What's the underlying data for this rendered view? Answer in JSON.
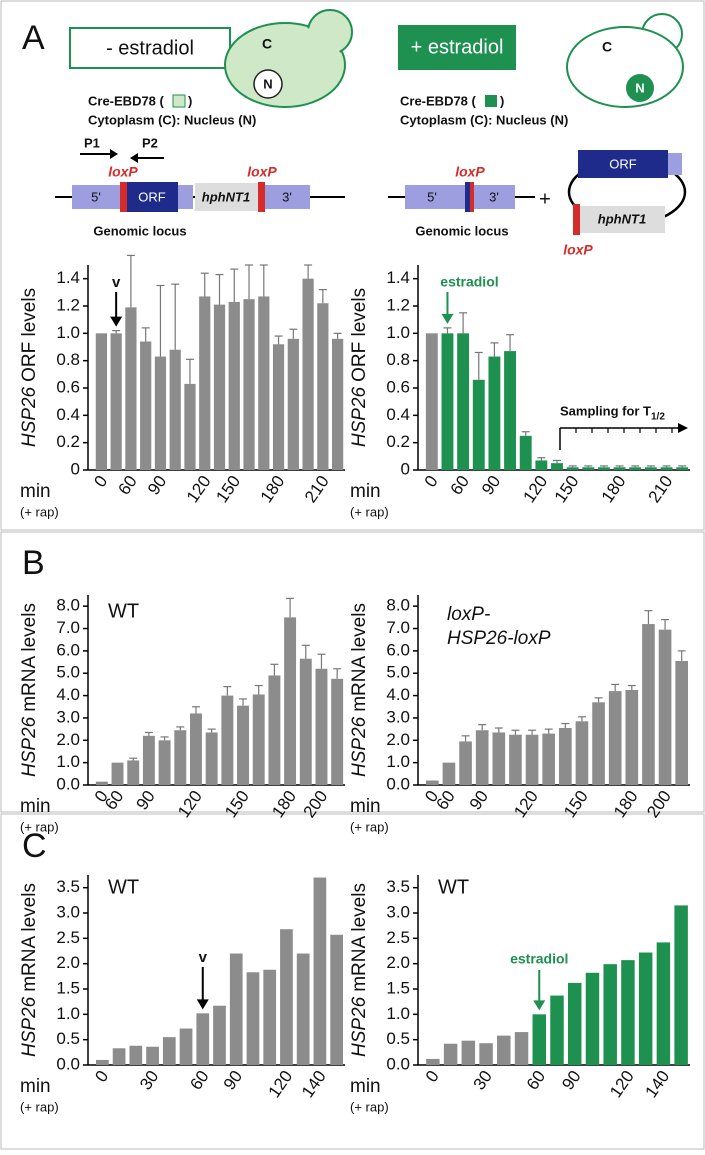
{
  "labels": [
    "A",
    "B",
    "C"
  ],
  "diagram": {
    "left": {
      "condition": "- estradiol",
      "cell_c": "C",
      "cell_n": "N",
      "fusion": "Cre-EBD78 (",
      "fusion_end": ")",
      "compartments": "Cytoplasm (C): Nucleus (N)",
      "primer1": "P1",
      "primer2": "P2",
      "loxp1": "loxP",
      "loxp2": "loxP",
      "five": "5'",
      "orf": "ORF",
      "marker": "hphNT1",
      "three": "3'",
      "locus": "Genomic locus"
    },
    "right": {
      "condition": "+ estradiol",
      "cell_c": "C",
      "cell_n": "N",
      "fusion": "Cre-EBD78 (",
      "fusion_end": ")",
      "compartments": "Cytoplasm (C): Nucleus (N)",
      "loxp1": "loxP",
      "five": "5'",
      "three": "3'",
      "locus": "Genomic locus",
      "plus": "+",
      "orf": "ORF",
      "marker": "hphNT1",
      "loxp2": "loxP"
    }
  },
  "chart_data": [
    {
      "type": "bar",
      "ylabel_italic": "HSP26",
      "ylabel": "ORF levels",
      "xlabel": "min",
      "xlabel_sub": "(+ rap)",
      "categories": [
        "0",
        null,
        "60",
        null,
        "90",
        null,
        null,
        "120",
        null,
        "150",
        null,
        null,
        "180",
        null,
        null,
        "210",
        null
      ],
      "values": [
        1.0,
        1.0,
        1.19,
        0.94,
        0.83,
        0.88,
        0.63,
        1.27,
        1.21,
        1.23,
        1.25,
        1.27,
        0.92,
        0.96,
        1.4,
        1.22,
        0.96
      ],
      "errors": [
        0,
        0.02,
        0.38,
        0.1,
        0.52,
        0.48,
        0.18,
        0.17,
        0.22,
        0.24,
        0.25,
        0.23,
        0.06,
        0.07,
        0.1,
        0.1,
        0.04
      ],
      "color": "#8c8c8c",
      "ylim": [
        0,
        1.5
      ],
      "yticks": [
        0,
        0.2,
        0.4,
        0.6,
        0.8,
        {
          "value": 1,
          "label": "1.0"
        },
        1.2,
        1.4
      ],
      "notes": [
        "v"
      ]
    },
    {
      "type": "bar",
      "ylabel_italic": "HSP26",
      "ylabel": "ORF levels",
      "xlabel": "min",
      "xlabel_sub": "(+ rap)",
      "categories": [
        "0",
        null,
        "60",
        null,
        "90",
        null,
        null,
        "120",
        null,
        "150",
        null,
        null,
        "180",
        null,
        null,
        "210",
        null
      ],
      "values": [
        1.0,
        1.0,
        1.0,
        0.66,
        0.83,
        0.87,
        0.25,
        0.07,
        0.05,
        0.02,
        0.02,
        0.02,
        0.02,
        0.02,
        0.02,
        0.02,
        0.02
      ],
      "errors": [
        0,
        0.04,
        0.15,
        0.2,
        0.1,
        0.12,
        0.03,
        0.02,
        0.02,
        0.01,
        0.01,
        0.01,
        0.01,
        0.01,
        0.01,
        0.01,
        0.01
      ],
      "colors": [
        "#8c8c8c",
        "#1e9150",
        "#1e9150",
        "#1e9150",
        "#1e9150",
        "#1e9150",
        "#1e9150",
        "#1e9150",
        "#1e9150",
        "#1e9150",
        "#1e9150",
        "#1e9150",
        "#1e9150",
        "#1e9150",
        "#1e9150",
        "#1e9150",
        "#1e9150"
      ],
      "ylim": [
        0,
        1.5
      ],
      "yticks": [
        0,
        0.2,
        0.4,
        0.6,
        0.8,
        {
          "value": 1,
          "label": "1.0"
        },
        1.2,
        1.4
      ],
      "notes": [
        "estradiol",
        "Sampling for T",
        "1/2"
      ]
    },
    {
      "type": "bar",
      "ylabel_italic": "HSP26",
      "ylabel": "mRNA levels",
      "xlabel": "min",
      "xlabel_sub": "(+ rap)",
      "categories": [
        "0",
        "60",
        null,
        "90",
        null,
        null,
        "120",
        null,
        null,
        "150",
        null,
        null,
        "180",
        null,
        "200",
        null
      ],
      "values": [
        0.15,
        1.0,
        1.1,
        2.2,
        2.0,
        2.45,
        3.2,
        2.35,
        4.0,
        3.55,
        4.05,
        4.9,
        7.5,
        5.65,
        5.2,
        4.75
      ],
      "errors": [
        0,
        0,
        0.1,
        0.15,
        0.15,
        0.15,
        0.3,
        0.15,
        0.4,
        0.3,
        0.4,
        0.5,
        0.85,
        0.6,
        0.65,
        0.45
      ],
      "color": "#8c8c8c",
      "ylim": [
        0,
        8.5
      ],
      "yticks": [
        {
          "value": 0,
          "label": "0.0"
        },
        {
          "value": 1,
          "label": "1.0"
        },
        {
          "value": 2,
          "label": "2.0"
        },
        {
          "value": 3,
          "label": "3.0"
        },
        {
          "value": 4,
          "label": "4.0"
        },
        {
          "value": 5,
          "label": "5.0"
        },
        {
          "value": 6,
          "label": "6.0"
        },
        {
          "value": 7,
          "label": "7.0"
        },
        {
          "value": 8,
          "label": "8.0"
        }
      ],
      "notes": [
        "WT"
      ]
    },
    {
      "type": "bar",
      "ylabel_italic": "HSP26",
      "ylabel": "mRNA levels",
      "xlabel": "min",
      "xlabel_sub": "(+ rap)",
      "categories": [
        "0",
        "60",
        null,
        "90",
        null,
        null,
        "120",
        null,
        null,
        "150",
        null,
        null,
        "180",
        null,
        "200",
        null
      ],
      "values": [
        0.2,
        1.0,
        1.95,
        2.45,
        2.35,
        2.25,
        2.25,
        2.3,
        2.55,
        2.85,
        3.7,
        4.2,
        4.25,
        7.2,
        6.95,
        5.55
      ],
      "errors": [
        0,
        0,
        0.25,
        0.25,
        0.2,
        0.2,
        0.2,
        0.2,
        0.2,
        0.2,
        0.2,
        0.3,
        0.2,
        0.6,
        0.45,
        0.45
      ],
      "color": "#8c8c8c",
      "ylim": [
        0,
        8.5
      ],
      "yticks": [
        {
          "value": 0,
          "label": "0.0"
        },
        {
          "value": 1,
          "label": "1.0"
        },
        {
          "value": 2,
          "label": "2.0"
        },
        {
          "value": 3,
          "label": "3.0"
        },
        {
          "value": 4,
          "label": "4.0"
        },
        {
          "value": 5,
          "label": "5.0"
        },
        {
          "value": 6,
          "label": "6.0"
        },
        {
          "value": 7,
          "label": "7.0"
        },
        {
          "value": 8,
          "label": "8.0"
        }
      ],
      "notes": [
        "loxP-",
        "HSP26-loxP"
      ]
    },
    {
      "type": "bar",
      "ylabel_italic": "HSP26",
      "ylabel": "mRNA levels",
      "xlabel": "min",
      "xlabel_sub": "(+ rap)",
      "categories": [
        "0",
        null,
        null,
        "30",
        null,
        null,
        "60",
        null,
        "90",
        null,
        null,
        "120",
        null,
        "140",
        null
      ],
      "values": [
        0.1,
        0.33,
        0.38,
        0.36,
        0.55,
        0.72,
        1.02,
        1.17,
        2.2,
        1.83,
        1.88,
        2.68,
        2.2,
        3.7,
        2.57
      ],
      "color": "#8c8c8c",
      "ylim": [
        0,
        3.75
      ],
      "yticks": [
        {
          "value": 0,
          "label": "0.0"
        },
        0.5,
        {
          "value": 1,
          "label": "1.0"
        },
        1.5,
        {
          "value": 2,
          "label": "2.0"
        },
        2.5,
        {
          "value": 3,
          "label": "3.0"
        },
        3.5
      ],
      "notes": [
        "WT",
        "v"
      ]
    },
    {
      "type": "bar",
      "ylabel_italic": "HSP26",
      "ylabel": "mRNA levels",
      "xlabel": "min",
      "xlabel_sub": "(+ rap)",
      "categories": [
        "0",
        null,
        null,
        "30",
        null,
        null,
        "60",
        null,
        "90",
        null,
        null,
        "120",
        null,
        "140",
        null
      ],
      "values": [
        0.12,
        0.42,
        0.48,
        0.43,
        0.58,
        0.65,
        1.0,
        1.37,
        1.62,
        1.82,
        1.99,
        2.07,
        2.22,
        2.42,
        3.15
      ],
      "colors": [
        "#8c8c8c",
        "#8c8c8c",
        "#8c8c8c",
        "#8c8c8c",
        "#8c8c8c",
        "#8c8c8c",
        "#1e9150",
        "#1e9150",
        "#1e9150",
        "#1e9150",
        "#1e9150",
        "#1e9150",
        "#1e9150",
        "#1e9150",
        "#1e9150"
      ],
      "ylim": [
        0,
        3.75
      ],
      "yticks": [
        {
          "value": 0,
          "label": "0.0"
        },
        0.5,
        {
          "value": 1,
          "label": "1.0"
        },
        1.5,
        {
          "value": 2,
          "label": "2.0"
        },
        2.5,
        {
          "value": 3,
          "label": "3.0"
        },
        3.5
      ],
      "notes": [
        "WT",
        "estradiol"
      ]
    }
  ]
}
